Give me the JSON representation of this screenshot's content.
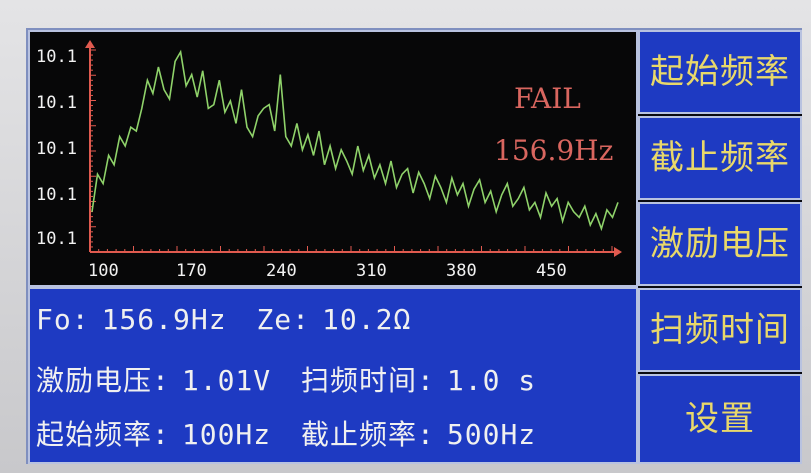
{
  "graph": {
    "y_ticks": [
      "10.1",
      "10.1",
      "10.1",
      "10.1",
      "10.1"
    ],
    "x_ticks": [
      "100",
      "170",
      "240",
      "310",
      "380",
      "450"
    ],
    "status_text": "FAIL",
    "status_freq": "156.9Hz",
    "trace_color": "#8fd26a",
    "axis_color": "#e05a4f"
  },
  "chart_data": {
    "type": "line",
    "x_tick_labels": [
      "100",
      "170",
      "240",
      "310",
      "380",
      "450"
    ],
    "y_tick_labels": [
      "10.1",
      "10.1",
      "10.1",
      "10.1",
      "10.1"
    ],
    "xlim": [
      100,
      500
    ],
    "series": [
      {
        "values_relative": [
          0.15,
          0.35,
          0.3,
          0.45,
          0.4,
          0.55,
          0.5,
          0.6,
          0.58,
          0.7,
          0.85,
          0.78,
          0.92,
          0.8,
          0.75,
          0.95,
          1.0,
          0.82,
          0.88,
          0.76,
          0.9,
          0.7,
          0.72,
          0.85,
          0.68,
          0.74,
          0.62,
          0.8,
          0.6,
          0.55,
          0.66,
          0.7,
          0.72,
          0.58,
          0.88,
          0.55,
          0.5,
          0.62,
          0.48,
          0.56,
          0.45,
          0.58,
          0.4,
          0.5,
          0.38,
          0.48,
          0.42,
          0.35,
          0.5,
          0.37,
          0.45,
          0.33,
          0.4,
          0.3,
          0.42,
          0.28,
          0.35,
          0.38,
          0.25,
          0.36,
          0.3,
          0.22,
          0.34,
          0.28,
          0.2,
          0.33,
          0.24,
          0.3,
          0.18,
          0.27,
          0.32,
          0.2,
          0.26,
          0.15,
          0.24,
          0.3,
          0.18,
          0.22,
          0.28,
          0.16,
          0.2,
          0.12,
          0.25,
          0.18,
          0.22,
          0.1,
          0.2,
          0.15,
          0.12,
          0.18,
          0.08,
          0.14,
          0.06,
          0.16,
          0.12,
          0.2
        ]
      }
    ]
  },
  "info": {
    "fo_label": "Fo:",
    "fo_value": "156.9Hz",
    "ze_label": "Ze:",
    "ze_value": "10.2Ω",
    "voltage_label": "激励电压:",
    "voltage_value": "1.01V",
    "sweep_time_label": "扫频时间:",
    "sweep_time_value": "1.0 s",
    "start_freq_label": "起始频率:",
    "start_freq_value": "100Hz",
    "stop_freq_label": "截止频率:",
    "stop_freq_value": "500Hz"
  },
  "menu": {
    "items": [
      {
        "label": "起始频率"
      },
      {
        "label": "截止频率"
      },
      {
        "label": "激励电压"
      },
      {
        "label": "扫频时间"
      },
      {
        "label": "设置"
      }
    ]
  }
}
